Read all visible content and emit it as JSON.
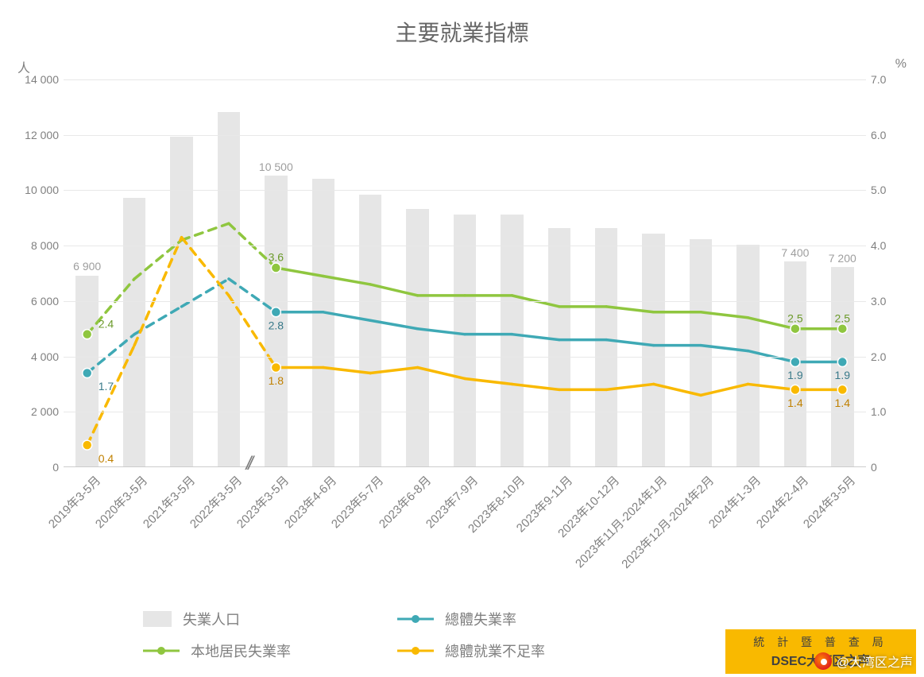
{
  "chart": {
    "type": "bar+line-dual-axis",
    "title": "主要就業指標",
    "title_fontsize": 28,
    "title_color": "#666666",
    "background_color": "#ffffff",
    "grid_color": "#e8e8e8",
    "axis_color": "#cccccc",
    "tick_font_color": "#808080",
    "tick_fontsize": 14,
    "xlabel_fontsize": 15,
    "xlabel_rotation_deg": -45,
    "bar_width_ratio": 0.48,
    "break_after_index": 3,
    "break_symbol": "//",
    "left_axis": {
      "label": "人",
      "min": 0,
      "max": 14000,
      "tick_step": 2000,
      "tick_labels": [
        "0",
        "2 000",
        "4 000",
        "6 000",
        "8 000",
        "10 000",
        "12 000",
        "14 000"
      ]
    },
    "right_axis": {
      "label": "%",
      "min": 0,
      "max": 7.0,
      "tick_step": 1.0,
      "tick_labels": [
        "0",
        "1.0",
        "2.0",
        "3.0",
        "4.0",
        "5.0",
        "6.0",
        "7.0"
      ]
    },
    "categories": [
      "2019年3-5月",
      "2020年3-5月",
      "2021年3-5月",
      "2022年3-5月",
      "2023年3-5月",
      "2023年4-6月",
      "2023年5-7月",
      "2023年6-8月",
      "2023年7-9月",
      "2023年8-10月",
      "2023年9-11月",
      "2023年10-12月",
      "2023年11月-2024年1月",
      "2023年12月-2024年2月",
      "2024年1-3月",
      "2024年2-4月",
      "2024年3-5月"
    ],
    "bars": {
      "name": "失業人口",
      "color": "#e6e6e6",
      "label_color": "#9e9e9e",
      "values": [
        6900,
        9700,
        11900,
        12800,
        10500,
        10400,
        9800,
        9300,
        9100,
        9100,
        8600,
        8600,
        8400,
        8200,
        8000,
        7400,
        7200
      ],
      "shown_value_labels": {
        "0": "6 900",
        "4": "10 500",
        "15": "7 400",
        "16": "7 200"
      }
    },
    "lines": [
      {
        "name": "總體失業率",
        "color": "#3fa9b5",
        "width": 3.5,
        "marker": "circle",
        "marker_size": 6,
        "values": [
          1.7,
          2.4,
          2.9,
          3.4,
          2.8,
          2.8,
          2.65,
          2.5,
          2.4,
          2.4,
          2.3,
          2.3,
          2.2,
          2.2,
          2.1,
          1.9,
          1.9
        ],
        "shown_value_labels": {
          "0": "1.7",
          "4": "2.8",
          "15": "1.9",
          "16": "1.9"
        },
        "label_color": "#3a7a8a"
      },
      {
        "name": "本地居民失業率",
        "color": "#8fc63f",
        "width": 3.5,
        "marker": "circle",
        "marker_size": 6,
        "values": [
          2.4,
          3.4,
          4.1,
          4.4,
          3.6,
          3.45,
          3.3,
          3.1,
          3.1,
          3.1,
          2.9,
          2.9,
          2.8,
          2.8,
          2.7,
          2.5,
          2.5
        ],
        "shown_value_labels": {
          "0": "2.4",
          "4": "3.6",
          "15": "2.5",
          "16": "2.5"
        },
        "label_color": "#6b9a2a"
      },
      {
        "name": "總體就業不足率",
        "color": "#f9b900",
        "width": 3.5,
        "marker": "circle",
        "marker_size": 6,
        "values": [
          0.4,
          2.2,
          4.15,
          3.1,
          1.8,
          1.8,
          1.7,
          1.8,
          1.6,
          1.5,
          1.4,
          1.4,
          1.5,
          1.3,
          1.5,
          1.4,
          1.4
        ],
        "shown_value_labels": {
          "0": "0.4",
          "4": "1.8",
          "15": "1.4",
          "16": "1.4"
        },
        "label_color": "#c08000"
      }
    ],
    "dashed_segments": [
      0,
      1,
      2,
      3
    ]
  },
  "legend": {
    "items": [
      {
        "kind": "bar",
        "label": "失業人口",
        "color": "#e6e6e6"
      },
      {
        "kind": "line",
        "label": "總體失業率",
        "color": "#3fa9b5"
      },
      {
        "kind": "line",
        "label": "本地居民失業率",
        "color": "#8fc63f"
      },
      {
        "kind": "line",
        "label": "總體就業不足率",
        "color": "#f9b900"
      }
    ]
  },
  "footer": {
    "logo_line1": "統 計 暨 普 查 局",
    "logo_line2": "DSEC大湾区之声",
    "logo_bg": "#f9b900",
    "weibo_text": "@大湾区之声"
  }
}
